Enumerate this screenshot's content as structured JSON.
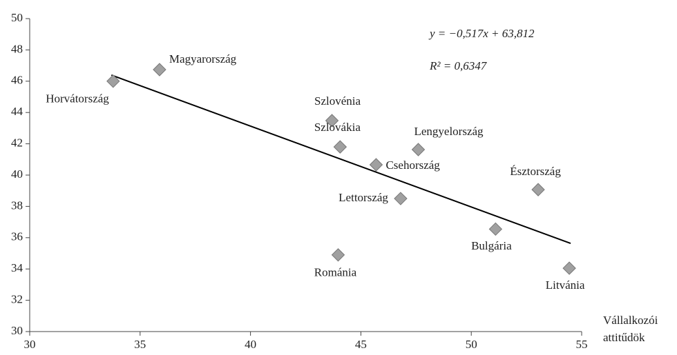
{
  "chart_data": {
    "type": "scatter",
    "x_label": [
      "Vállalkozói",
      "attitűdök"
    ],
    "labels": [
      "Horvátország",
      "Magyarország",
      "Szlovénia",
      "Szlovákia",
      "Lengyelország",
      "Csehország",
      "Észtország",
      "Lettország",
      "Bulgária",
      "Románia",
      "Litvánia"
    ],
    "x": [
      33.78,
      35.88,
      43.69,
      44.06,
      47.6,
      45.69,
      53.03,
      46.8,
      51.1,
      43.97,
      54.44
    ],
    "y": [
      46.0,
      46.74,
      43.48,
      41.8,
      41.63,
      40.66,
      39.07,
      38.5,
      36.55,
      34.9,
      34.05
    ],
    "color": "#a0a0a0",
    "trendline": {
      "slope": -0.517,
      "intercept": 63.812,
      "x_range": [
        33.7,
        54.5
      ],
      "color": "#000000"
    },
    "equation": "y = −0,517x + 63,812",
    "r_squared": "R² = 0,6347",
    "xlim": [
      30,
      55
    ],
    "xticks": [
      30,
      35,
      40,
      45,
      50,
      55
    ],
    "ylim": [
      30,
      50
    ],
    "yticks": [
      30,
      32,
      34,
      36,
      38,
      40,
      42,
      44,
      46,
      48,
      50
    ],
    "grid": false
  }
}
